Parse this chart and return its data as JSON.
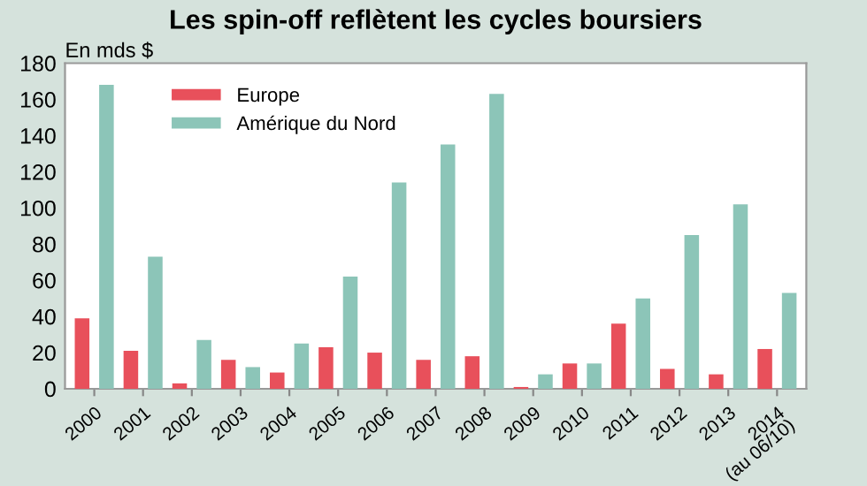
{
  "chart_data": {
    "type": "bar",
    "title": "Les spin-off reflètent les cycles boursiers",
    "ylabel": "En mds $",
    "categories": [
      "2000",
      "2001",
      "2002",
      "2003",
      "2004",
      "2005",
      "2006",
      "2007",
      "2008",
      "2009",
      "2010",
      "2011",
      "2012",
      "2013",
      "2014\n(au 06/10)"
    ],
    "series": [
      {
        "name": "Europe",
        "color": "#e8505b",
        "values": [
          39,
          21,
          3,
          16,
          9,
          23,
          20,
          16,
          18,
          1,
          14,
          36,
          11,
          8,
          22
        ]
      },
      {
        "name": "Amérique du Nord",
        "color": "#8cc5b8",
        "values": [
          168,
          73,
          27,
          12,
          25,
          62,
          114,
          135,
          163,
          8,
          14,
          50,
          85,
          102,
          53
        ]
      }
    ],
    "ylim": [
      0,
      180
    ],
    "yticks": [
      0,
      20,
      40,
      60,
      80,
      100,
      120,
      140,
      160,
      180
    ],
    "grid": false,
    "legend": "top left"
  }
}
